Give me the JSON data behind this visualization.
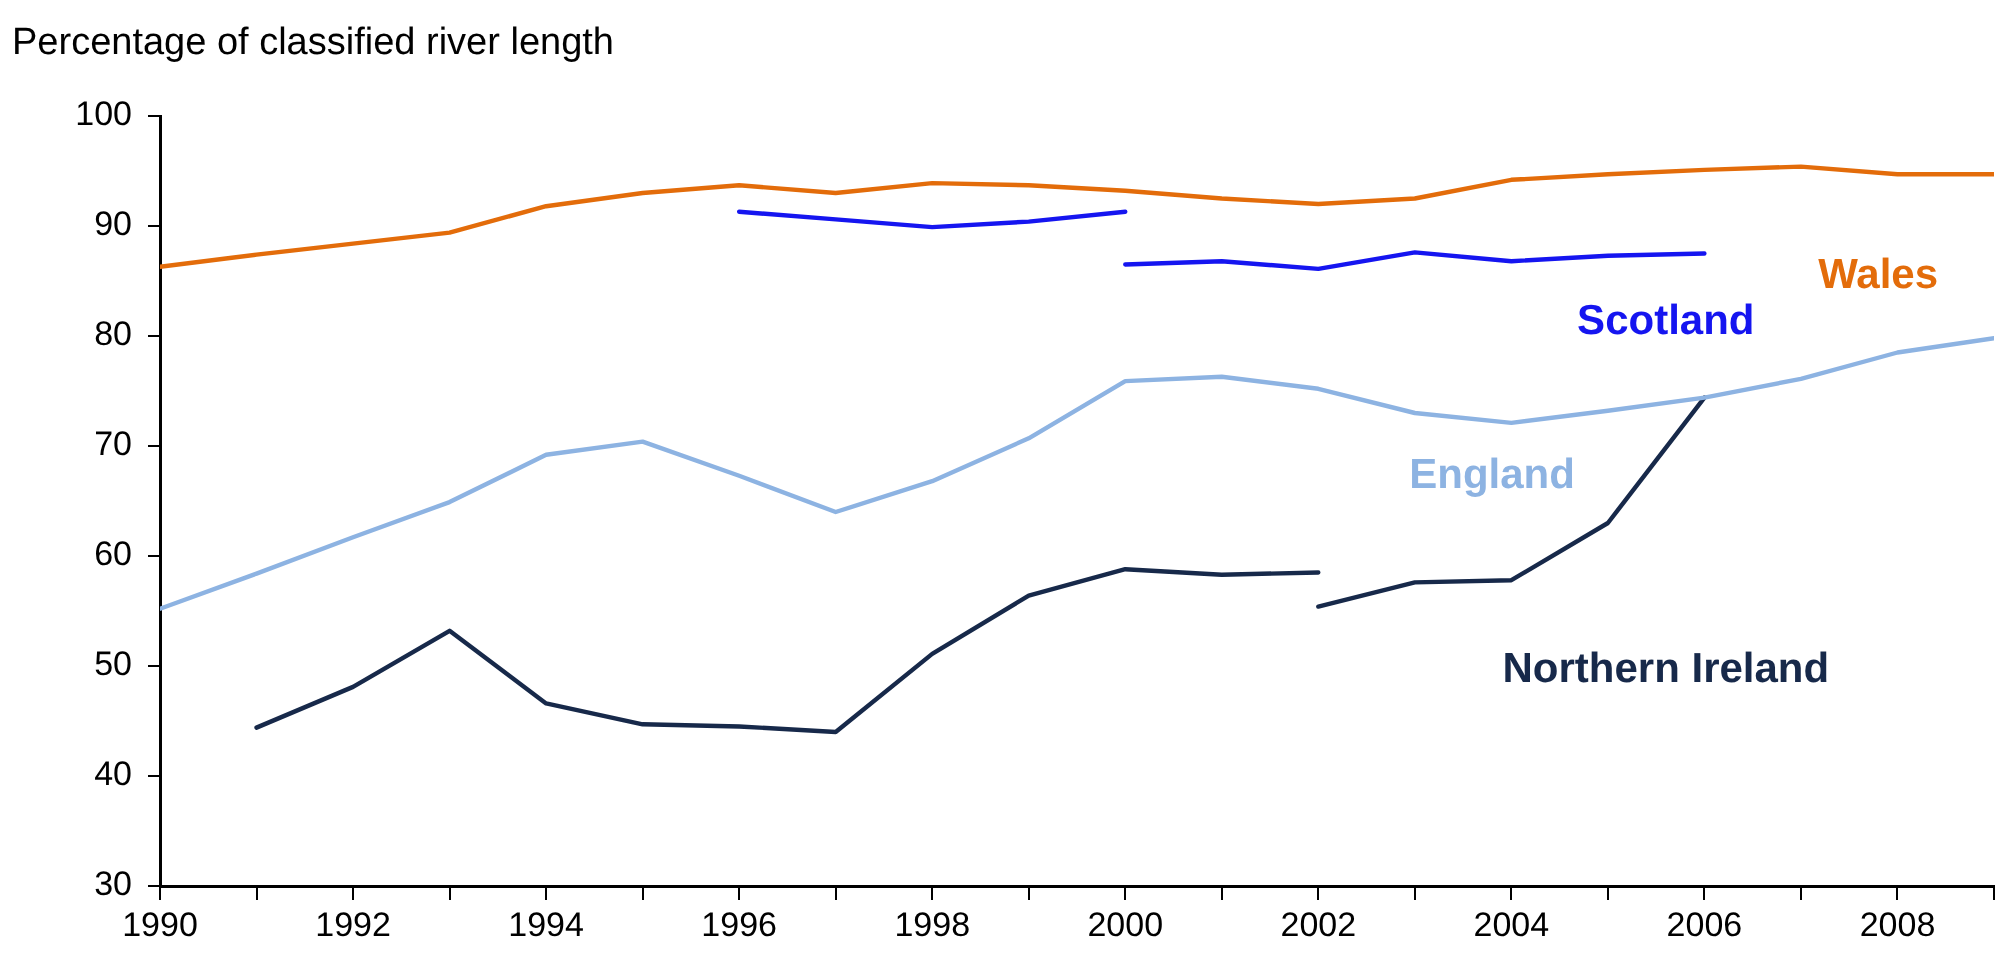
{
  "chart_data": {
    "type": "line",
    "ylabel": "Percentage of classified river length",
    "xlim": [
      1990,
      2009
    ],
    "ylim": [
      30,
      100
    ],
    "yticks": [
      30,
      40,
      50,
      60,
      70,
      80,
      90,
      100
    ],
    "xticks": [
      1990,
      {
        "value": 1991,
        "label": null
      },
      1992,
      {
        "value": 1993,
        "label": null
      },
      1994,
      {
        "value": 1995,
        "label": null
      },
      1996,
      {
        "value": 1997,
        "label": null
      },
      1998,
      {
        "value": 1999,
        "label": null
      },
      2000,
      {
        "value": 2001,
        "label": null
      },
      2002,
      {
        "value": 2003,
        "label": null
      },
      2004,
      {
        "value": 2005,
        "label": null
      },
      2006,
      {
        "value": 2007,
        "label": null
      },
      2008,
      {
        "value": 2009,
        "label": null
      }
    ],
    "legend": false,
    "marker": "none",
    "series": [
      {
        "name": "Wales",
        "color": "#e36c0a",
        "x": [
          1990,
          1991,
          1992,
          1993,
          1994,
          1995,
          1996,
          1997,
          1998,
          1999,
          2000,
          2001,
          2002,
          2003,
          2004,
          2005,
          2006,
          2007,
          2008,
          2009
        ],
        "values": [
          86.3,
          87.4,
          88.4,
          89.4,
          91.8,
          93.0,
          93.7,
          93.0,
          93.9,
          93.7,
          93.2,
          92.5,
          92.0,
          92.5,
          94.2,
          94.7,
          95.1,
          95.4,
          94.7,
          94.7
        ]
      },
      {
        "name": "Scotland",
        "color": "#1515f0",
        "x": [
          1996,
          1997,
          1998,
          1999,
          2000
        ],
        "values": [
          91.3,
          90.6,
          89.9,
          90.4,
          91.3
        ]
      },
      {
        "color": "#1515f0",
        "x": [
          2000,
          2001,
          2002,
          2003,
          2004,
          2005,
          2006
        ],
        "values": [
          86.5,
          86.8,
          86.1,
          87.6,
          86.8,
          87.3,
          87.5
        ]
      },
      {
        "name": "England",
        "color": "#8db3e2",
        "x": [
          1990,
          1991,
          1992,
          1993,
          1994,
          1995,
          1996,
          1997,
          1998,
          1999,
          2000,
          2001,
          2002,
          2003,
          2004,
          2005,
          2006,
          2007,
          2008,
          2009
        ],
        "values": [
          55.2,
          58.4,
          61.7,
          64.9,
          69.2,
          70.4,
          67.3,
          64.0,
          66.8,
          70.7,
          75.9,
          76.3,
          75.2,
          73.0,
          72.1,
          73.2,
          74.4,
          76.1,
          78.5,
          79.8
        ]
      },
      {
        "name": "Northern Ireland",
        "color": "#17294a",
        "x": [
          1991,
          1992,
          1993,
          1994,
          1995,
          1996,
          1997,
          1998,
          1999,
          2000,
          2001,
          2002
        ],
        "values": [
          44.4,
          48.1,
          53.2,
          46.6,
          44.7,
          44.5,
          44.0,
          51.1,
          56.4,
          58.8,
          58.3,
          58.5
        ]
      },
      {
        "color": "#17294a",
        "x": [
          2002,
          2003,
          2004,
          2005,
          2006
        ],
        "values": [
          55.4,
          57.6,
          57.8,
          63.0,
          74.4
        ]
      }
    ]
  }
}
